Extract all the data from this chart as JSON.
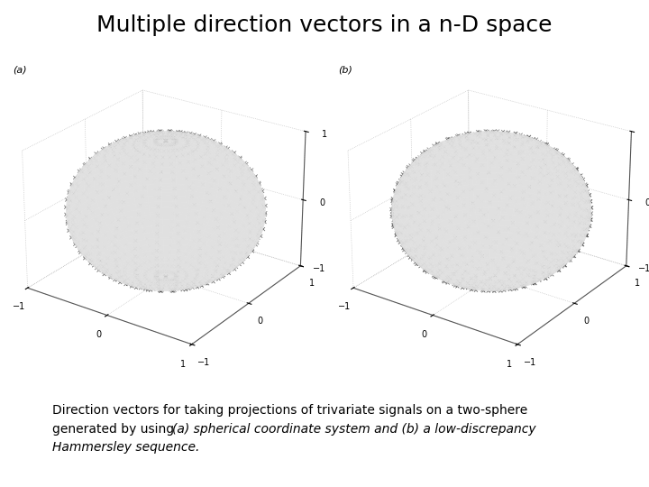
{
  "title": "Multiple direction vectors in a n-D space",
  "title_fontsize": 18,
  "label_a": "(a)",
  "label_b": "(b)",
  "caption_normal": "Direction vectors for taking projections of trivariate signals on a two-sphere\ngenerated by using ",
  "caption_italic1": "(a) spherical coordinate system and (b) a low-discrepancy\nHammersley sequence.",
  "caption_fontsize": 10,
  "background_color": "#ffffff",
  "sphere_color": "#e0e0e0",
  "sphere_alpha": 0.85,
  "marker_color": "#333333",
  "marker_size": 8,
  "marker_lw": 0.6,
  "n_theta_a": 30,
  "n_phi_a": 30,
  "n_points_b": 1000,
  "axis_ticks": [
    -1,
    0,
    1
  ],
  "elev": 25,
  "azim": -55,
  "pane_color": [
    1.0,
    1.0,
    1.0,
    0.0
  ],
  "grid_color": "#aaaaaa",
  "spine_color": "#555555"
}
